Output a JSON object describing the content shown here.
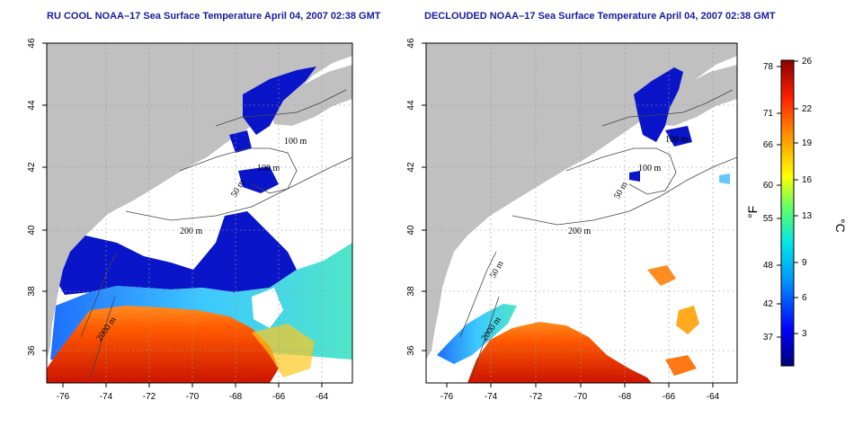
{
  "panels": [
    {
      "id": "left",
      "title": "RU COOL NOAA–17 Sea Surface Temperature April 04, 2007 02:38 GMT",
      "x_ticks": [
        "-76",
        "-74",
        "-72",
        "-70",
        "-68",
        "-66",
        "-64"
      ],
      "y_ticks": [
        "36",
        "38",
        "40",
        "42",
        "44",
        "46"
      ],
      "contour_labels": [
        "100 m",
        "100 m",
        "50 m",
        "200 m",
        "2000 m"
      ]
    },
    {
      "id": "right",
      "title": "DECLOUDED NOAA–17 Sea Surface Temperature April 04, 2007 02:38 GMT",
      "x_ticks": [
        "-76",
        "-74",
        "-72",
        "-70",
        "-68",
        "-66",
        "-64"
      ],
      "y_ticks": [
        "36",
        "38",
        "40",
        "42",
        "44",
        "46"
      ],
      "contour_labels": [
        "100 m",
        "100 m",
        "50 m",
        "200 m",
        "50 m",
        "2000 m"
      ]
    }
  ],
  "colorbar": {
    "fahrenheit_label": "°F",
    "celsius_label": "°C",
    "fahrenheit_ticks": [
      "78",
      "71",
      "66",
      "60",
      "55",
      "48",
      "42",
      "37"
    ],
    "celsius_ticks": [
      "26",
      "22",
      "19",
      "16",
      "13",
      "9",
      "6",
      "3"
    ]
  },
  "colors": {
    "land": "#c0c0c0",
    "title": "#1a1a9e",
    "cold": "#0a14c8",
    "warm": "#cc1a00"
  }
}
